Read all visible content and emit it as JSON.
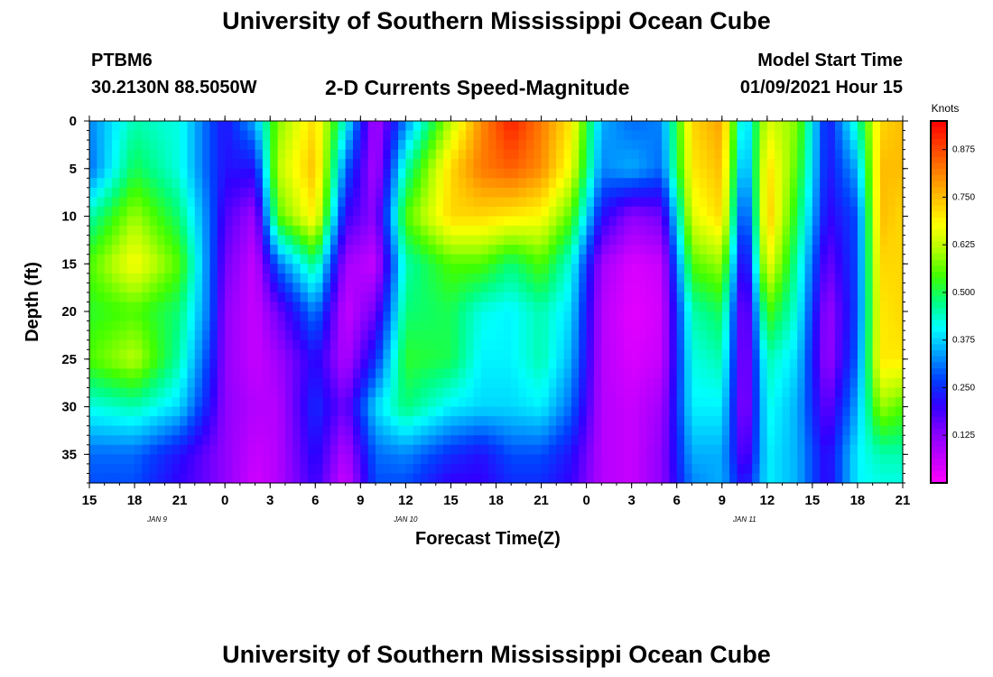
{
  "chart_data": {
    "type": "heatmap",
    "title": "University of Southern Mississippi Ocean Cube",
    "footer_title": "University of Southern Mississippi Ocean Cube",
    "station": "PTBM6",
    "location": "30.2130N 88.5050W",
    "subtitle": "2-D Currents Speed-Magnitude",
    "model_start_label": "Model Start Time",
    "model_start_value": "01/09/2021 Hour 15",
    "xlabel": "Forecast Time(Z)",
    "ylabel": "Depth (ft)",
    "x_tick_labels": [
      "15",
      "18",
      "21",
      "0",
      "3",
      "6",
      "9",
      "12",
      "15",
      "18",
      "21",
      "0",
      "3",
      "6",
      "9",
      "12",
      "15",
      "18",
      "21"
    ],
    "x_hours_from_start": [
      0,
      3,
      6,
      9,
      12,
      15,
      18,
      21,
      24,
      27,
      30,
      33,
      36,
      39,
      42,
      45,
      48,
      51,
      54
    ],
    "day_labels": [
      {
        "text": "JAN  9",
        "hour": 4.5
      },
      {
        "text": "JAN  10",
        "hour": 21
      },
      {
        "text": "JAN  11",
        "hour": 43.5
      }
    ],
    "y_ticks": [
      0,
      5,
      10,
      15,
      20,
      25,
      30,
      35
    ],
    "ylim": [
      0,
      38
    ],
    "xlim_hours": [
      0,
      54
    ],
    "colorbar": {
      "label": "Knots",
      "min": 0.0,
      "max": 0.95,
      "ticks": [
        "0.125",
        "0.250",
        "0.375",
        "0.500",
        "0.625",
        "0.750",
        "0.875"
      ],
      "tick_values": [
        0.125,
        0.25,
        0.375,
        0.5,
        0.625,
        0.75,
        0.875
      ]
    },
    "depth_profiles": {
      "depths_ft": [
        0,
        5,
        10,
        15,
        20,
        25,
        30,
        35,
        38
      ],
      "columns": [
        {
          "hour": 0,
          "v": [
            0.32,
            0.3,
            0.45,
            0.55,
            0.52,
            0.55,
            0.42,
            0.3,
            0.28
          ]
        },
        {
          "hour": 3,
          "v": [
            0.45,
            0.5,
            0.6,
            0.68,
            0.55,
            0.62,
            0.45,
            0.3,
            0.28
          ]
        },
        {
          "hour": 6,
          "v": [
            0.42,
            0.42,
            0.48,
            0.55,
            0.48,
            0.45,
            0.38,
            0.22,
            0.2
          ]
        },
        {
          "hour": 8,
          "v": [
            0.28,
            0.28,
            0.3,
            0.3,
            0.3,
            0.26,
            0.22,
            0.15,
            0.15
          ]
        },
        {
          "hour": 9,
          "v": [
            0.22,
            0.22,
            0.18,
            0.15,
            0.12,
            0.12,
            0.12,
            0.12,
            0.12
          ]
        },
        {
          "hour": 11,
          "v": [
            0.35,
            0.22,
            0.1,
            0.06,
            0.06,
            0.06,
            0.08,
            0.06,
            0.05
          ]
        },
        {
          "hour": 12.5,
          "v": [
            0.58,
            0.62,
            0.55,
            0.3,
            0.15,
            0.1,
            0.08,
            0.08,
            0.08
          ]
        },
        {
          "hour": 15,
          "v": [
            0.72,
            0.75,
            0.7,
            0.48,
            0.32,
            0.22,
            0.25,
            0.22,
            0.2
          ]
        },
        {
          "hour": 17,
          "v": [
            0.42,
            0.3,
            0.2,
            0.1,
            0.06,
            0.08,
            0.15,
            0.08,
            0.05
          ]
        },
        {
          "hour": 19,
          "v": [
            0.08,
            0.08,
            0.12,
            0.06,
            0.15,
            0.25,
            0.38,
            0.3,
            0.28
          ]
        },
        {
          "hour": 21,
          "v": [
            0.32,
            0.45,
            0.55,
            0.45,
            0.48,
            0.52,
            0.48,
            0.32,
            0.28
          ]
        },
        {
          "hour": 24,
          "v": [
            0.62,
            0.72,
            0.72,
            0.55,
            0.5,
            0.5,
            0.4,
            0.25,
            0.2
          ]
        },
        {
          "hour": 26,
          "v": [
            0.8,
            0.82,
            0.72,
            0.55,
            0.42,
            0.4,
            0.38,
            0.22,
            0.2
          ]
        },
        {
          "hour": 28,
          "v": [
            0.92,
            0.85,
            0.7,
            0.48,
            0.4,
            0.4,
            0.38,
            0.28,
            0.25
          ]
        },
        {
          "hour": 30,
          "v": [
            0.82,
            0.8,
            0.68,
            0.55,
            0.45,
            0.45,
            0.4,
            0.28,
            0.25
          ]
        },
        {
          "hour": 32,
          "v": [
            0.7,
            0.66,
            0.55,
            0.42,
            0.38,
            0.35,
            0.3,
            0.22,
            0.2
          ]
        },
        {
          "hour": 34,
          "v": [
            0.35,
            0.32,
            0.22,
            0.1,
            0.08,
            0.08,
            0.08,
            0.08,
            0.08
          ]
        },
        {
          "hour": 36,
          "v": [
            0.3,
            0.35,
            0.12,
            0.04,
            0.03,
            0.04,
            0.06,
            0.06,
            0.06
          ]
        },
        {
          "hour": 38,
          "v": [
            0.32,
            0.3,
            0.15,
            0.06,
            0.05,
            0.06,
            0.1,
            0.12,
            0.12
          ]
        },
        {
          "hour": 40,
          "v": [
            0.72,
            0.7,
            0.65,
            0.55,
            0.45,
            0.42,
            0.4,
            0.35,
            0.32
          ]
        },
        {
          "hour": 42,
          "v": [
            0.78,
            0.75,
            0.72,
            0.6,
            0.5,
            0.45,
            0.4,
            0.35,
            0.35
          ]
        },
        {
          "hour": 43.5,
          "v": [
            0.35,
            0.3,
            0.22,
            0.15,
            0.1,
            0.1,
            0.1,
            0.15,
            0.2
          ]
        },
        {
          "hour": 45,
          "v": [
            0.65,
            0.72,
            0.75,
            0.68,
            0.55,
            0.45,
            0.42,
            0.4,
            0.4
          ]
        },
        {
          "hour": 47,
          "v": [
            0.58,
            0.55,
            0.5,
            0.45,
            0.42,
            0.38,
            0.35,
            0.35,
            0.35
          ]
        },
        {
          "hour": 49,
          "v": [
            0.22,
            0.22,
            0.2,
            0.15,
            0.1,
            0.1,
            0.15,
            0.2,
            0.2
          ]
        },
        {
          "hour": 51,
          "v": [
            0.45,
            0.35,
            0.28,
            0.28,
            0.28,
            0.3,
            0.35,
            0.4,
            0.4
          ]
        },
        {
          "hour": 52.5,
          "v": [
            0.72,
            0.75,
            0.75,
            0.72,
            0.7,
            0.7,
            0.6,
            0.45,
            0.42
          ]
        },
        {
          "hour": 54,
          "v": [
            0.75,
            0.75,
            0.72,
            0.72,
            0.72,
            0.7,
            0.55,
            0.45,
            0.42
          ]
        }
      ]
    },
    "palette": [
      "#ff00ff",
      "#c000ff",
      "#8000ff",
      "#3000ff",
      "#0040ff",
      "#00a0ff",
      "#00ffff",
      "#00ff80",
      "#40ff00",
      "#b0ff00",
      "#ffff00",
      "#ffc000",
      "#ff8000",
      "#ff4000",
      "#ff0000"
    ]
  }
}
